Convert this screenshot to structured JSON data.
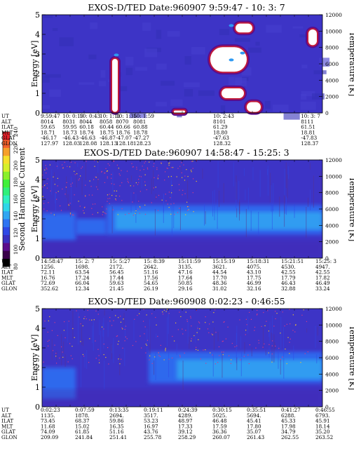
{
  "colorbar": {
    "label": "Second Harmonic Current",
    "ticks": [
      "240",
      "220",
      "200",
      "180",
      "160",
      "140",
      "120",
      "100",
      "80"
    ],
    "colors": [
      "#000000",
      "#3a004a",
      "#5a0c8c",
      "#3a2fc0",
      "#2f48e6",
      "#2f74f2",
      "#30a6f2",
      "#2fd6e8",
      "#2ff0c0",
      "#2ff07a",
      "#3ff03a",
      "#8af02a",
      "#d6f02a",
      "#f6e02a",
      "#f6a02a",
      "#f2602a",
      "#e6202a"
    ]
  },
  "panels": [
    {
      "title": "EXOS-D/TED   Date:960907   9:59:47 - 10: 3: 7",
      "ylabel_left": "Energy [eV]",
      "ylabel_right": "Temperature [K]",
      "yticks_left": [
        "0",
        "1",
        "2",
        "3",
        "4",
        "5"
      ],
      "yticks_right": [
        "0",
        "2000",
        "4000",
        "6000",
        "8000",
        "10000",
        "12000"
      ],
      "table": {
        "labels": [
          "UT",
          "ALT",
          "ILAT",
          "MLT",
          "GLAT",
          "GLON"
        ],
        "columns": [
          {
            "UT": "9:59:47",
            "ALT": "8014",
            "ILAT": "59.65",
            "MLT": "18.71",
            "GLAT": "-46.17",
            "GLON": "127.97"
          },
          {
            "UT": "10: 0:19",
            "ALT": "8031",
            "ILAT": "59.95",
            "MLT": "18.73",
            "GLAT": "-46.43",
            "GLON": "128.03"
          },
          {
            "UT": "10: 0:43",
            "ALT": "8044",
            "ILAT": "60.18",
            "MLT": "18.74",
            "GLAT": "-46.63",
            "GLON": "128.08"
          },
          {
            "UT": "10: 1:11",
            "ALT": "8058",
            "ILAT": "60.44",
            "MLT": "18.75",
            "GLAT": "-46.87",
            "GLON": "128.13"
          },
          {
            "UT": "10: 1:35",
            "ALT": "8070",
            "ILAT": "60.66",
            "MLT": "18.76",
            "GLAT": "-47.07",
            "GLON": "128.18"
          },
          {
            "UT": "10: 1:59",
            "ALT": "8081",
            "ILAT": "60.88",
            "MLT": "18.78",
            "GLAT": "-47.27",
            "GLON": "128.23"
          },
          {
            "UT": "10: 2:43",
            "ALT": "8101",
            "ILAT": "61.29",
            "MLT": "18.80",
            "GLAT": "-47.63",
            "GLON": "128.32"
          },
          {
            "UT": "10: 3: 7",
            "ALT": "8111",
            "ILAT": "61.51",
            "MLT": "18.81",
            "GLAT": "-47.83",
            "GLON": "128.37"
          }
        ]
      }
    },
    {
      "title": "EXOS-D/TED   Date:960907   14:58:47 - 15:25: 3",
      "ylabel_left": "Energy [eV]",
      "ylabel_right": "Temperature [K]",
      "yticks_left": [
        "0",
        "1",
        "2",
        "3",
        "4",
        "5"
      ],
      "yticks_right": [
        "0",
        "2000",
        "4000",
        "6000",
        "8000",
        "10000",
        "12000"
      ],
      "table": {
        "labels": [
          "UT",
          "ALT",
          "ILAT",
          "MLT",
          "GLAT",
          "GLON"
        ],
        "columns": [
          {
            "UT": "14:58:47",
            "ALT": "1256.",
            "ILAT": "72.11",
            "MLT": "16.76",
            "GLAT": "72.69",
            "GLON": "352.62"
          },
          {
            "UT": "15: 2: 7",
            "ALT": "1698.",
            "ILAT": "63.54",
            "MLT": "17.24",
            "GLAT": "66.04",
            "GLON": "12.34"
          },
          {
            "UT": "15: 5:27",
            "ALT": "2172.",
            "ILAT": "56.45",
            "MLT": "17.44",
            "GLAT": "59.63",
            "GLON": "21.45"
          },
          {
            "UT": "15: 8:39",
            "ALT": "2642.",
            "ILAT": "51.16",
            "MLT": "17.56",
            "GLAT": "54.65",
            "GLON": "26.19"
          },
          {
            "UT": "15:11:59",
            "ALT": "3135.",
            "ILAT": "47.16",
            "MLT": "17.64",
            "GLAT": "50.85",
            "GLON": "29.16"
          },
          {
            "UT": "15:15:19",
            "ALT": "3621.",
            "ILAT": "44.54",
            "MLT": "17.70",
            "GLAT": "48.36",
            "GLON": "31.02"
          },
          {
            "UT": "15:18:31",
            "ALT": "4075.",
            "ILAT": "43.10",
            "MLT": "17.75",
            "GLAT": "46.99",
            "GLON": "32.16"
          },
          {
            "UT": "15:21:51",
            "ALT": "4530.",
            "ILAT": "42.55",
            "MLT": "17.79",
            "GLAT": "46.43",
            "GLON": "32.88"
          },
          {
            "UT": "15:25: 3",
            "ALT": "4947.",
            "ILAT": "42.55",
            "MLT": "17.82",
            "GLAT": "46.49",
            "GLON": "33.24"
          }
        ]
      }
    },
    {
      "title": "EXOS-D/TED   Date:960908   0:02:23 - 0:46:55",
      "ylabel_left": "Energy [eV]",
      "ylabel_right": "Temperature [K]",
      "yticks_left": [
        "0",
        "1",
        "2",
        "3",
        "4",
        "5"
      ],
      "yticks_right": [
        "0",
        "2000",
        "4000",
        "6000",
        "8000",
        "10000",
        "12000"
      ],
      "table": {
        "labels": [
          "UT",
          "ALT",
          "ILAT",
          "MLT",
          "GLAT",
          "GLON"
        ],
        "columns": [
          {
            "UT": "0:02:23",
            "ALT": "1135.",
            "ILAT": "73.45",
            "MLT": "11.68",
            "GLAT": "74.09",
            "GLON": "209.09"
          },
          {
            "UT": "0:07:59",
            "ALT": "1878.",
            "ILAT": "68.37",
            "MLT": "15.02",
            "GLAT": "61.85",
            "GLON": "241.84"
          },
          {
            "UT": "0:13:35",
            "ALT": "2694.",
            "ILAT": "59.86",
            "MLT": "16.35",
            "GLAT": "51.16",
            "GLON": "251.41"
          },
          {
            "UT": "0:19:11",
            "ALT": "3517.",
            "ILAT": "53.23",
            "MLT": "16.97",
            "GLAT": "43.76",
            "GLON": "255.78"
          },
          {
            "UT": "0:24:39",
            "ALT": "4289.",
            "ILAT": "48.97",
            "MLT": "17.33",
            "GLAT": "39.12",
            "GLON": "258.29"
          },
          {
            "UT": "0:30:15",
            "ALT": "5025.",
            "ILAT": "46.48",
            "MLT": "17.59",
            "GLAT": "36.36",
            "GLON": "260.07"
          },
          {
            "UT": "0:35:51",
            "ALT": "5694.",
            "ILAT": "45.41",
            "MLT": "17.80",
            "GLAT": "35.07",
            "GLON": "261.43"
          },
          {
            "UT": "0:41:27",
            "ALT": "6288.",
            "ILAT": "45.33",
            "MLT": "17.98",
            "GLAT": "34.79",
            "GLON": "262.55"
          },
          {
            "UT": "0:46:55",
            "ALT": "6793.",
            "ILAT": "45.91",
            "MLT": "18.14",
            "GLAT": "35.20",
            "GLON": "263.52"
          }
        ]
      }
    }
  ],
  "chart_data": [
    {
      "type": "heatmap",
      "title": "EXOS-D/TED   Date:960907   9:59:47 - 10: 3: 7",
      "ylabel": "Energy [eV]",
      "ylabel_right": "Temperature [K]",
      "ylim": [
        0,
        5
      ],
      "ylim_right": [
        0,
        12000
      ],
      "x_ticks": [
        "9:59:47",
        "10: 0:19",
        "10: 0:43",
        "10: 1:11",
        "10: 1:35",
        "10: 1:59",
        "10: 2:43",
        "10: 3: 7"
      ],
      "background_level": "low (blue-purple)",
      "saturated_regions": [
        {
          "t": [
            0.25,
            0.27
          ],
          "e": [
            0.05,
            2.75
          ]
        },
        {
          "t": [
            0.47,
            0.51
          ],
          "e": [
            0.0,
            0.12
          ]
        },
        {
          "t": [
            0.6,
            0.73
          ],
          "e": [
            2.1,
            3.35
          ]
        },
        {
          "t": [
            0.64,
            0.72
          ],
          "e": [
            0.75,
            1.25
          ]
        },
        {
          "t": [
            0.69,
            0.75
          ],
          "e": [
            4.1,
            4.55
          ]
        },
        {
          "t": [
            0.73,
            0.78
          ],
          "e": [
            0.05,
            0.55
          ]
        },
        {
          "t": [
            0.95,
            0.98
          ],
          "e": [
            3.45,
            4.25
          ]
        }
      ]
    },
    {
      "type": "heatmap",
      "title": "EXOS-D/TED   Date:960907   14:58:47 - 15:25: 3",
      "ylabel": "Energy [eV]",
      "ylabel_right": "Temperature [K]",
      "ylim": [
        0,
        5
      ],
      "ylim_right": [
        0,
        12000
      ],
      "x_ticks": [
        "14:58:47",
        "15: 2: 7",
        "15: 5:27",
        "15: 8:39",
        "15:11:59",
        "15:15:19",
        "15:18:31",
        "15:21:51",
        "15:25: 3"
      ],
      "bands": [
        {
          "t": [
            0.0,
            0.12
          ],
          "e": [
            0.9,
            2.3
          ],
          "level": "medium"
        },
        {
          "t": [
            0.12,
            0.23
          ],
          "e": [
            1.2,
            2.0
          ],
          "level": "medium"
        },
        {
          "t": [
            0.23,
            1.0
          ],
          "e": [
            1.2,
            2.7
          ],
          "level": "medium"
        },
        {
          "t": [
            0.26,
            1.0
          ],
          "e": [
            1.45,
            2.35
          ],
          "level": "high"
        }
      ]
    },
    {
      "type": "heatmap",
      "title": "EXOS-D/TED   Date:960908   0:02:23 - 0:46:55",
      "ylabel": "Energy [eV]",
      "ylabel_right": "Temperature [K]",
      "ylim": [
        0,
        5
      ],
      "ylim_right": [
        0,
        12000
      ],
      "x_ticks": [
        "0:02:23",
        "0:07:59",
        "0:13:35",
        "0:19:11",
        "0:24:39",
        "0:30:15",
        "0:35:51",
        "0:41:27",
        "0:46:55"
      ],
      "bands": [
        {
          "t": [
            0.0,
            0.12
          ],
          "e": [
            0.4,
            2.0
          ],
          "level": "medium"
        },
        {
          "t": [
            0.38,
            1.0
          ],
          "e": [
            1.2,
            2.8
          ],
          "level": "medium"
        },
        {
          "t": [
            0.48,
            1.0
          ],
          "e": [
            1.4,
            2.4
          ],
          "level": "high"
        }
      ]
    }
  ]
}
